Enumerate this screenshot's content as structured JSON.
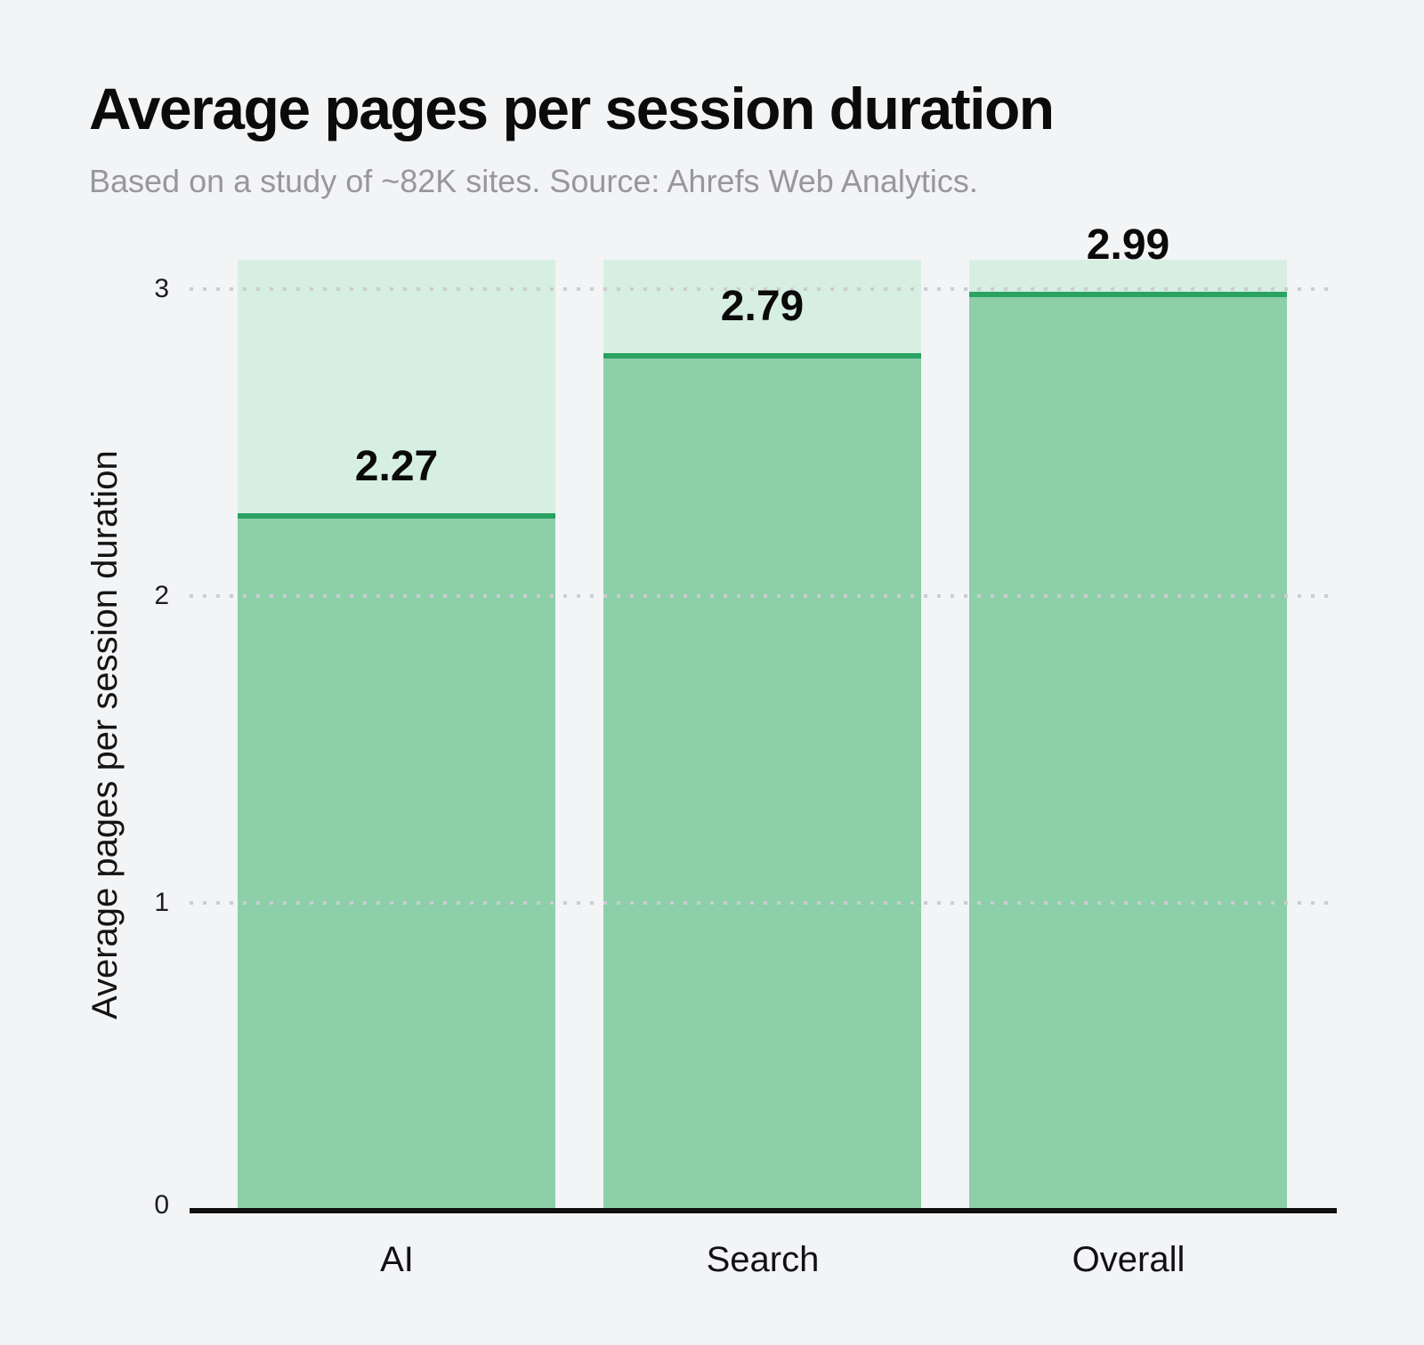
{
  "header": {
    "title": "Average pages per session duration",
    "subtitle": "Based on a study of ~82K sites. Source: Ahrefs Web Analytics."
  },
  "chart_data": {
    "type": "bar",
    "title": "Average pages per session duration",
    "subtitle": "Based on a study of ~82K sites. Source: Ahrefs Web Analytics.",
    "categories": [
      "AI",
      "Search",
      "Overall"
    ],
    "values": [
      2.27,
      2.79,
      2.99
    ],
    "value_labels": [
      "2.27",
      "2.79",
      "2.99"
    ],
    "xlabel": "",
    "ylabel": "Average pages per session duration",
    "ylim": [
      0,
      3.1
    ],
    "yticks": [
      "0",
      "1",
      "2",
      "3"
    ],
    "grid": "horizontal-dotted",
    "legend": "none",
    "track_note": "each bar has a full-height light background track topped at ~3.1",
    "colors": {
      "background": "#f3f4f6",
      "track": "#d7efe2",
      "fill": "#8ccfa9",
      "value_line": "#2aa262",
      "gridline": "#cbcdd0",
      "axis": "#101010",
      "title": "#0b0b0b",
      "subtitle": "#97979d"
    }
  }
}
